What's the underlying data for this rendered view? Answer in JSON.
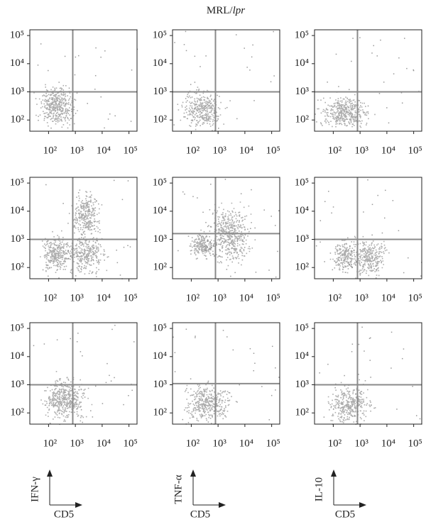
{
  "figure_title": {
    "prefix": "MRL/",
    "italic": "lpr"
  },
  "axis_keys": [
    {
      "y_label": "IFN-γ",
      "x_label": "CD5"
    },
    {
      "y_label": "TNF-α",
      "x_label": "CD5"
    },
    {
      "y_label": "IL-10",
      "x_label": "CD5"
    }
  ],
  "chart_data": [
    {
      "type": "flow",
      "log_scale": true,
      "xlim": [
        20,
        200000
      ],
      "ylim": [
        40,
        160000
      ],
      "xticks": [
        {
          "value": 100,
          "label": "10²"
        },
        {
          "value": 1000,
          "label": "10³"
        },
        {
          "value": 10000,
          "label": "10⁴"
        },
        {
          "value": 100000,
          "label": "10⁵"
        }
      ],
      "yticks": [
        {
          "value": 100,
          "label": "10²"
        },
        {
          "value": 1000,
          "label": "10³"
        },
        {
          "value": 10000,
          "label": "10⁴"
        },
        {
          "value": 100000,
          "label": "10⁵"
        }
      ],
      "gate_x": 800,
      "gate_y": 1000,
      "color": "#8a8a8a"
    },
    {
      "type": "flow",
      "log_scale": true,
      "xlim": [
        20,
        200000
      ],
      "ylim": [
        40,
        160000
      ],
      "xticks": [
        {
          "value": 100,
          "label": "10²"
        },
        {
          "value": 1000,
          "label": "10³"
        },
        {
          "value": 10000,
          "label": "10⁴"
        },
        {
          "value": 100000,
          "label": "10⁵"
        }
      ],
      "yticks": [
        {
          "value": 100,
          "label": "10²"
        },
        {
          "value": 1000,
          "label": "10³"
        },
        {
          "value": 10000,
          "label": "10⁴"
        },
        {
          "value": 100000,
          "label": "10⁵"
        }
      ],
      "gate_x": 800,
      "gate_y": 1000,
      "color": "#8a8a8a"
    },
    {
      "type": "flow",
      "log_scale": true,
      "xlim": [
        20,
        200000
      ],
      "ylim": [
        40,
        160000
      ],
      "xticks": [
        {
          "value": 100,
          "label": "10²"
        },
        {
          "value": 1000,
          "label": "10³"
        },
        {
          "value": 10000,
          "label": "10⁴"
        },
        {
          "value": 100000,
          "label": "10⁵"
        }
      ],
      "yticks": [
        {
          "value": 100,
          "label": "10²"
        },
        {
          "value": 1000,
          "label": "10³"
        },
        {
          "value": 10000,
          "label": "10⁴"
        },
        {
          "value": 100000,
          "label": "10⁵"
        }
      ],
      "gate_x": 800,
      "gate_y": 1000,
      "color": "#8a8a8a"
    },
    {
      "type": "flow",
      "log_scale": true,
      "xlim": [
        20,
        200000
      ],
      "ylim": [
        40,
        160000
      ],
      "xticks": [
        {
          "value": 100,
          "label": "10²"
        },
        {
          "value": 1000,
          "label": "10³"
        },
        {
          "value": 10000,
          "label": "10⁴"
        },
        {
          "value": 100000,
          "label": "10⁵"
        }
      ],
      "yticks": [
        {
          "value": 100,
          "label": "10²"
        },
        {
          "value": 1000,
          "label": "10³"
        },
        {
          "value": 10000,
          "label": "10⁴"
        },
        {
          "value": 100000,
          "label": "10⁵"
        }
      ],
      "gate_x": 800,
      "gate_y": 1000,
      "color": "#8a8a8a"
    },
    {
      "type": "flow",
      "log_scale": true,
      "xlim": [
        20,
        200000
      ],
      "ylim": [
        40,
        160000
      ],
      "xticks": [
        {
          "value": 100,
          "label": "10²"
        },
        {
          "value": 1000,
          "label": "10³"
        },
        {
          "value": 10000,
          "label": "10⁴"
        },
        {
          "value": 100000,
          "label": "10⁵"
        }
      ],
      "yticks": [
        {
          "value": 100,
          "label": "10²"
        },
        {
          "value": 1000,
          "label": "10³"
        },
        {
          "value": 10000,
          "label": "10⁴"
        },
        {
          "value": 100000,
          "label": "10⁵"
        }
      ],
      "gate_x": 800,
      "gate_y": 1600,
      "color": "#8a8a8a"
    },
    {
      "type": "flow",
      "log_scale": true,
      "xlim": [
        20,
        200000
      ],
      "ylim": [
        40,
        160000
      ],
      "xticks": [
        {
          "value": 100,
          "label": "10²"
        },
        {
          "value": 1000,
          "label": "10³"
        },
        {
          "value": 10000,
          "label": "10⁴"
        },
        {
          "value": 100000,
          "label": "10⁵"
        }
      ],
      "yticks": [
        {
          "value": 100,
          "label": "10²"
        },
        {
          "value": 1000,
          "label": "10³"
        },
        {
          "value": 10000,
          "label": "10⁴"
        },
        {
          "value": 100000,
          "label": "10⁵"
        }
      ],
      "gate_x": 800,
      "gate_y": 1000,
      "color": "#8a8a8a"
    },
    {
      "type": "flow",
      "log_scale": true,
      "xlim": [
        20,
        200000
      ],
      "ylim": [
        40,
        160000
      ],
      "xticks": [
        {
          "value": 100,
          "label": "10²"
        },
        {
          "value": 1000,
          "label": "10³"
        },
        {
          "value": 10000,
          "label": "10⁴"
        },
        {
          "value": 100000,
          "label": "10⁵"
        }
      ],
      "yticks": [
        {
          "value": 100,
          "label": "10²"
        },
        {
          "value": 1000,
          "label": "10³"
        },
        {
          "value": 10000,
          "label": "10⁴"
        },
        {
          "value": 100000,
          "label": "10⁵"
        }
      ],
      "gate_x": 800,
      "gate_y": 1000,
      "color": "#8a8a8a"
    },
    {
      "type": "flow",
      "log_scale": true,
      "xlim": [
        20,
        200000
      ],
      "ylim": [
        40,
        160000
      ],
      "xticks": [
        {
          "value": 100,
          "label": "10²"
        },
        {
          "value": 1000,
          "label": "10³"
        },
        {
          "value": 10000,
          "label": "10⁴"
        },
        {
          "value": 100000,
          "label": "10⁵"
        }
      ],
      "yticks": [
        {
          "value": 100,
          "label": "10²"
        },
        {
          "value": 1000,
          "label": "10³"
        },
        {
          "value": 10000,
          "label": "10⁴"
        },
        {
          "value": 100000,
          "label": "10⁵"
        }
      ],
      "gate_x": 800,
      "gate_y": 1100,
      "color": "#8a8a8a"
    },
    {
      "type": "flow",
      "log_scale": true,
      "xlim": [
        20,
        200000
      ],
      "ylim": [
        40,
        160000
      ],
      "xticks": [
        {
          "value": 100,
          "label": "10²"
        },
        {
          "value": 1000,
          "label": "10³"
        },
        {
          "value": 10000,
          "label": "10⁴"
        },
        {
          "value": 100000,
          "label": "10⁵"
        }
      ],
      "yticks": [
        {
          "value": 100,
          "label": "10²"
        },
        {
          "value": 1000,
          "label": "10³"
        },
        {
          "value": 10000,
          "label": "10⁴"
        },
        {
          "value": 100000,
          "label": "10⁵"
        }
      ],
      "gate_x": 800,
      "gate_y": 1000,
      "color": "#8a8a8a"
    }
  ]
}
